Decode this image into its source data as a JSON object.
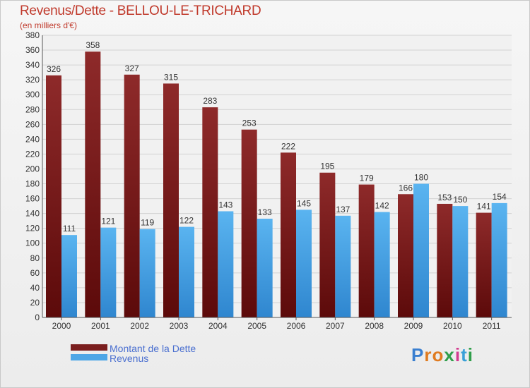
{
  "chart_data": {
    "type": "bar",
    "title": "Revenus/Dette - BELLOU-LE-TRICHARD",
    "subtitle": "(en milliers d'€)",
    "categories": [
      "2000",
      "2001",
      "2002",
      "2003",
      "2004",
      "2005",
      "2006",
      "2007",
      "2008",
      "2009",
      "2010",
      "2011"
    ],
    "series": [
      {
        "name": "Montant de la Dette",
        "color": "#7a1e1e",
        "values": [
          326,
          358,
          327,
          315,
          283,
          253,
          222,
          195,
          179,
          166,
          153,
          141
        ]
      },
      {
        "name": "Revenus",
        "color": "#4ea6e6",
        "values": [
          111,
          121,
          119,
          122,
          143,
          133,
          145,
          137,
          142,
          180,
          150,
          154
        ]
      }
    ],
    "ylim": [
      0,
      380
    ],
    "yticks": [
      0,
      20,
      40,
      60,
      80,
      100,
      120,
      140,
      160,
      180,
      200,
      220,
      240,
      260,
      280,
      300,
      320,
      340,
      360,
      380
    ],
    "grid": true,
    "legend": "bottom-left"
  },
  "logo_text": "Proxiti"
}
